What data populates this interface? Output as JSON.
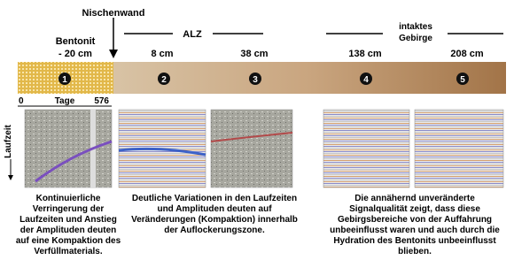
{
  "header": {
    "wall": "Nischenwand",
    "bentonite": [
      "Bentonit",
      "- 20 cm"
    ],
    "edz": "ALZ",
    "rock": [
      "intaktes",
      "Gebirge"
    ]
  },
  "depths": [
    "8 cm",
    "38 cm",
    "138 cm",
    "208 cm"
  ],
  "markers": [
    "1",
    "2",
    "3",
    "4",
    "5"
  ],
  "time_axis": {
    "start": "0",
    "label": "Tage",
    "end": "576"
  },
  "y_axis_label": "Laufzeit",
  "captions": [
    [
      "Kontinuierliche",
      "Verringerung der",
      "Laufzeiten und Anstieg",
      "der Amplituden deuten",
      "auf eine Kompaktion des",
      "Verfüllmaterials."
    ],
    [
      "Deutliche Variationen in den Laufzeiten",
      "und Amplituden deuten auf",
      "Veränderungen (Kompaktion) innerhalb",
      "der Auflockerungszone."
    ],
    [
      "Die annähernd unveränderte",
      "Signalqualität zeigt, dass diese",
      "Gebirgsbereiche von der Auffahrung",
      "unbeeinflusst waren und auch durch die",
      "Hydration des Bentonits unbeeinflusst",
      "blieben."
    ]
  ]
}
